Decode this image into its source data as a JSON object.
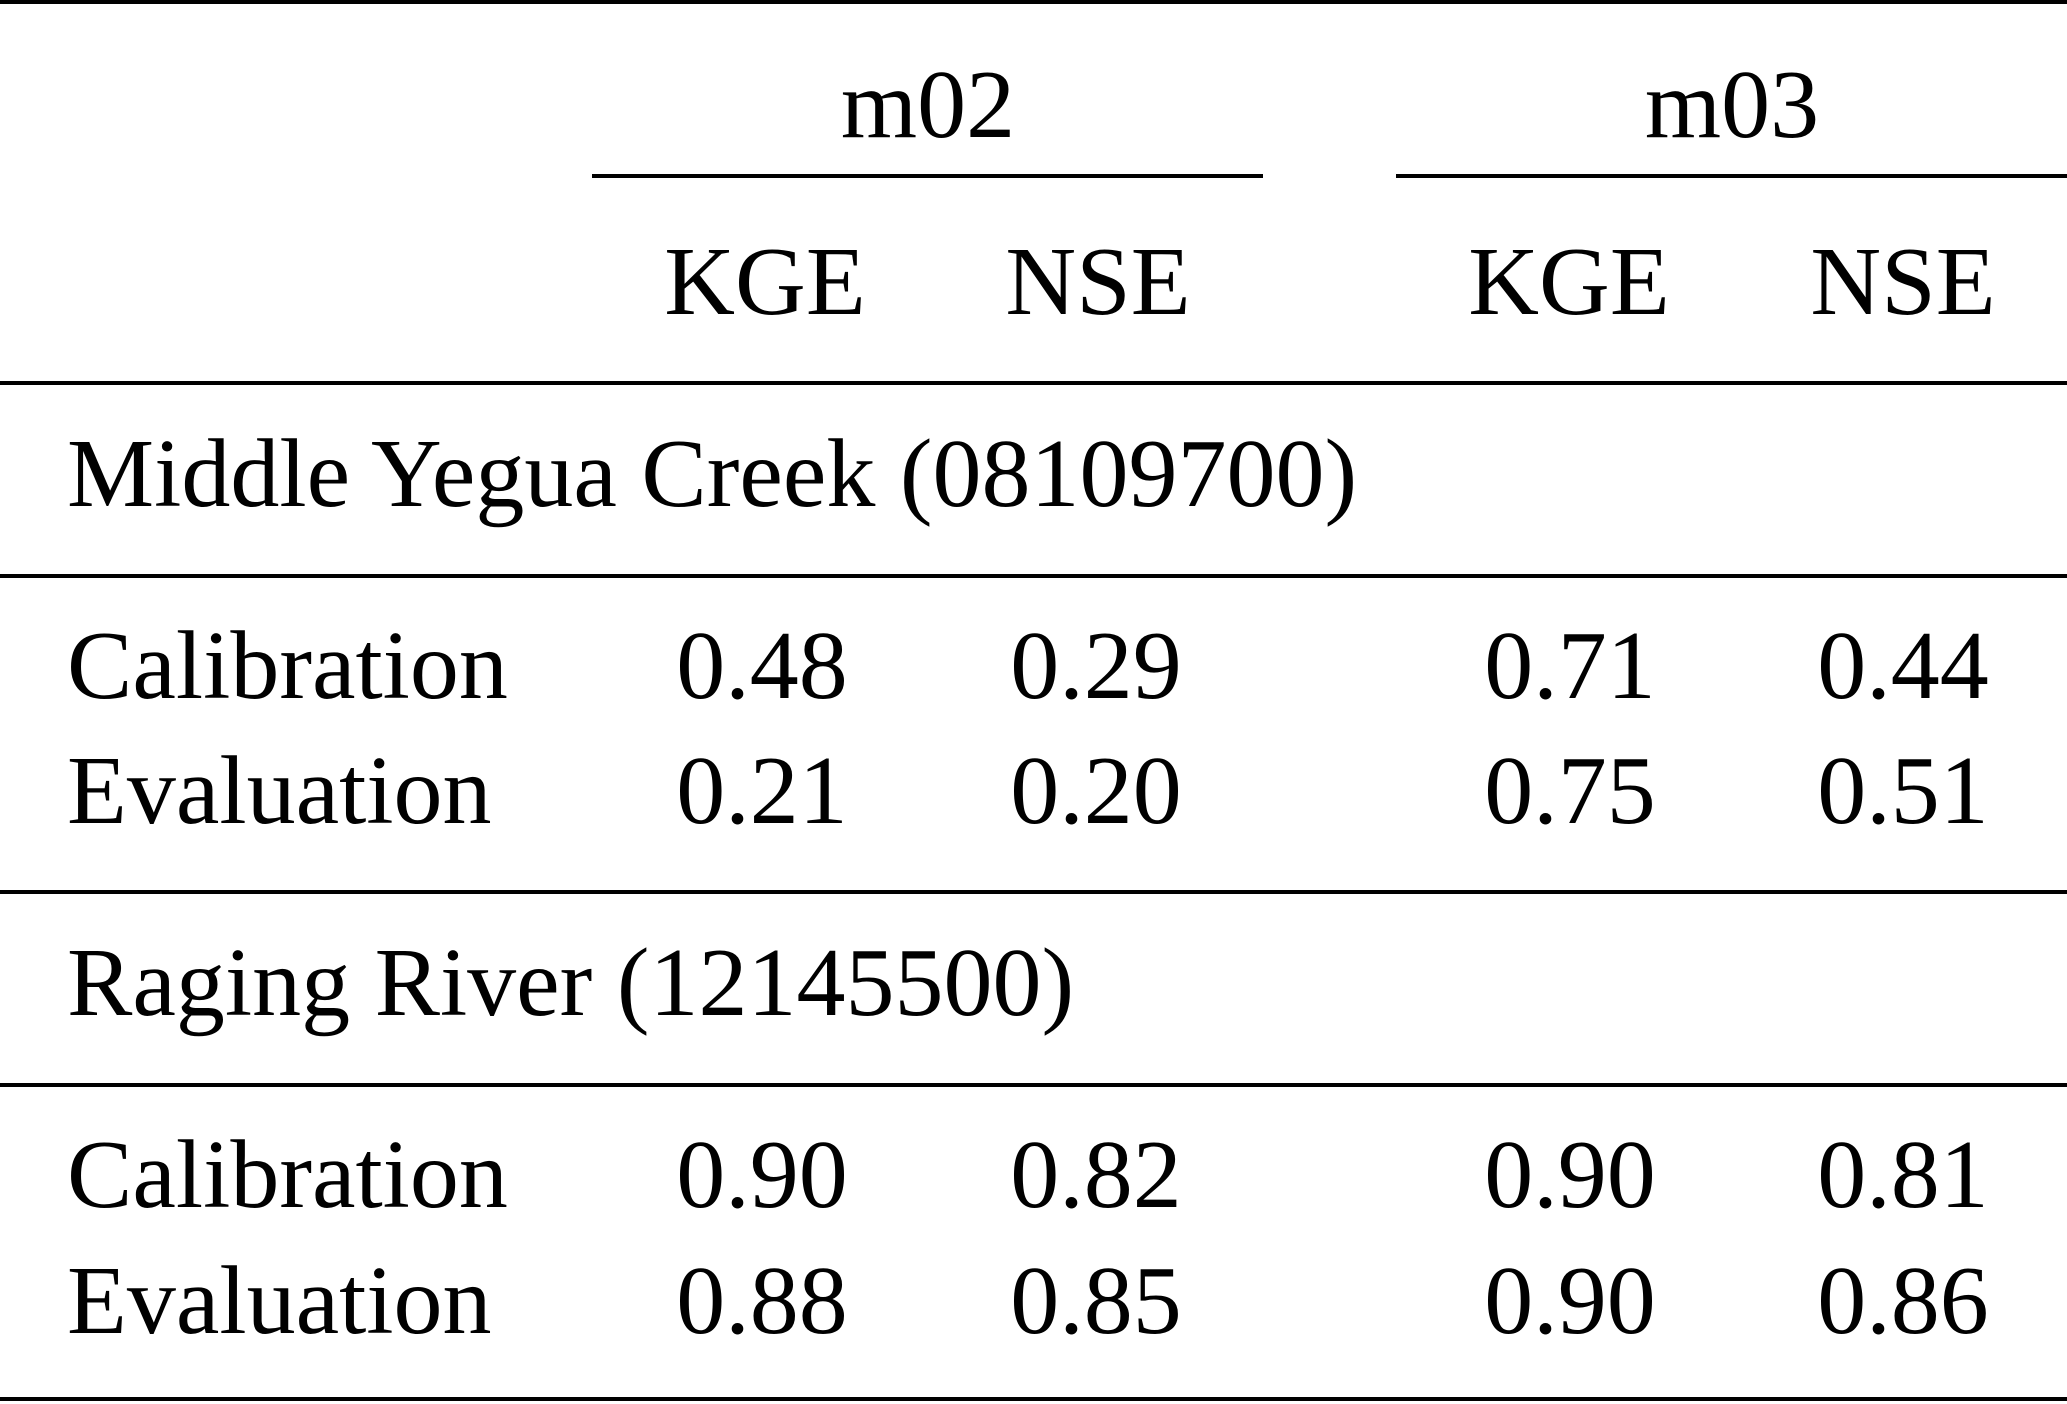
{
  "header": {
    "groups": [
      "m02",
      "m03"
    ],
    "subcolumns": [
      "KGE",
      "NSE",
      "KGE",
      "NSE"
    ]
  },
  "sections": [
    {
      "title": "Middle Yegua Creek (08109700)",
      "rows": [
        {
          "label": "Calibration",
          "values": [
            "0.48",
            "0.29",
            "0.71",
            "0.44"
          ]
        },
        {
          "label": "Evaluation",
          "values": [
            "0.21",
            "0.20",
            "0.75",
            "0.51"
          ]
        }
      ]
    },
    {
      "title": "Raging River (12145500)",
      "rows": [
        {
          "label": "Calibration",
          "values": [
            "0.90",
            "0.82",
            "0.90",
            "0.81"
          ]
        },
        {
          "label": "Evaluation",
          "values": [
            "0.88",
            "0.85",
            "0.90",
            "0.86"
          ]
        }
      ]
    }
  ]
}
